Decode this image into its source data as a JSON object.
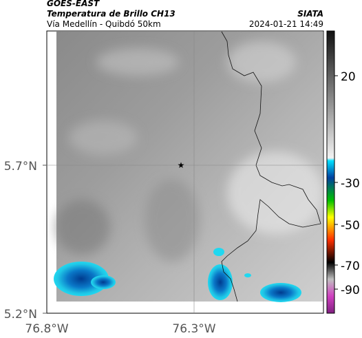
{
  "header": {
    "satellite": "GOES-EAST",
    "product": "Temperatura de Brillo CH13",
    "region": "Vía Medellín - Quibdó 50km",
    "agency": "SIATA",
    "timestamp": "2024-01-21 14:49"
  },
  "axes": {
    "lat_labels": [
      "5.7°N",
      "5.2°N"
    ],
    "lon_labels": [
      "76.8°W",
      "76.3°W"
    ]
  },
  "colorbar": {
    "tick_labels": [
      "20",
      "-30",
      "-50",
      "-70",
      "-90"
    ]
  }
}
